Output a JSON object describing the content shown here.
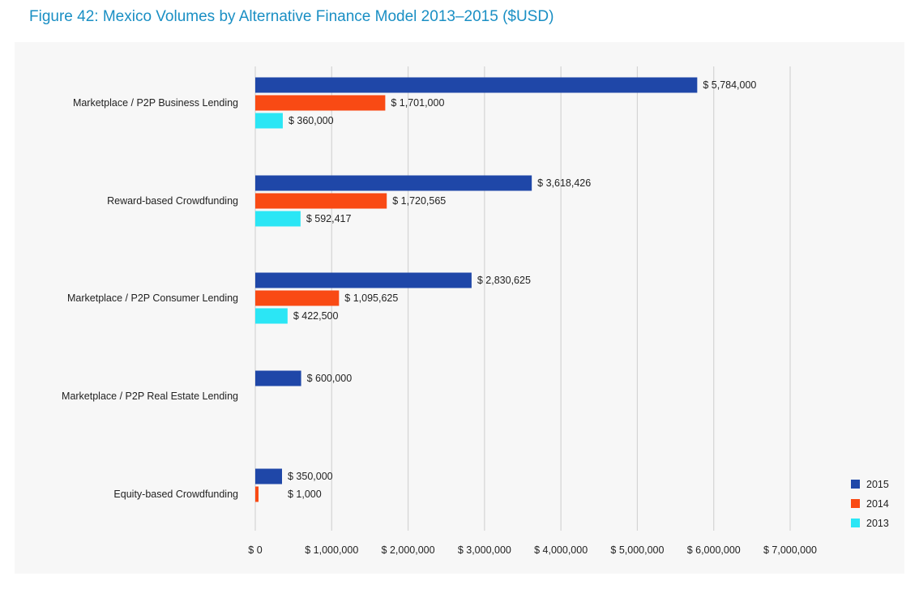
{
  "title": "Figure 42: Mexico Volumes by Alternative Finance Model 2013–2015 ($USD)",
  "chart_data": {
    "type": "bar",
    "orientation": "horizontal",
    "title": "Figure 42: Mexico Volumes by Alternative Finance Model 2013–2015 ($USD)",
    "xlabel": "",
    "ylabel": "",
    "xlim": [
      0,
      7000000
    ],
    "x_ticks": [
      0,
      1000000,
      2000000,
      3000000,
      4000000,
      5000000,
      6000000,
      7000000
    ],
    "x_tick_labels": [
      "$ 0",
      "$ 1,000,000",
      "$ 2,000,000",
      "$ 3,000,000",
      "$ 4,000,000",
      "$ 5,000,000",
      "$ 6,000,000",
      "$ 7,000,000"
    ],
    "grid": "vertical",
    "legend_position": "bottom-right",
    "categories": [
      "Marketplace / P2P Business Lending",
      "Reward-based Crowdfunding",
      "Marketplace / P2P Consumer Lending",
      "Marketplace / P2P Real Estate Lending",
      "Equity-based Crowdfunding"
    ],
    "series": [
      {
        "name": "2015",
        "color": "#1f47a8",
        "values": [
          5784000,
          3618426,
          2830625,
          600000,
          350000
        ],
        "labels": [
          "$ 5,784,000",
          "$ 3,618,426",
          "$ 2,830,625",
          "$ 600,000",
          "$ 350,000"
        ]
      },
      {
        "name": "2014",
        "color": "#f94a14",
        "values": [
          1701000,
          1720565,
          1095625,
          null,
          1000
        ],
        "labels": [
          "$ 1,701,000",
          "$ 1,720,565",
          "$ 1,095,625",
          null,
          "$ 1,000"
        ]
      },
      {
        "name": "2013",
        "color": "#2be6f5",
        "values": [
          360000,
          592417,
          422500,
          null,
          null
        ],
        "labels": [
          "$ 360,000",
          "$ 592,417",
          "$ 422,500",
          null,
          null
        ]
      }
    ]
  }
}
